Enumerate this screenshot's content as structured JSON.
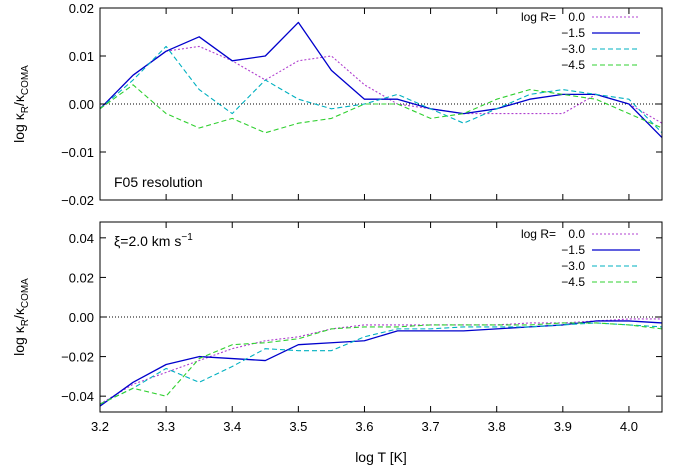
{
  "chart_data": [
    {
      "type": "line",
      "annotation": "F05 resolution",
      "xlabel": "",
      "ylabel_parts": [
        "log κ",
        "R",
        "/κ",
        "COMA"
      ],
      "xlim": [
        3.2,
        4.05
      ],
      "ylim": [
        -0.02,
        0.02
      ],
      "yticks": [
        -0.02,
        -0.01,
        0.0,
        0.01,
        0.02
      ],
      "ytick_labels": [
        "−0.02",
        "−0.01",
        "0.00",
        "0.01",
        "0.02"
      ],
      "zero_line": true,
      "legend_title": "log R=",
      "legend_position": "top-right",
      "x": [
        3.2,
        3.25,
        3.3,
        3.35,
        3.4,
        3.45,
        3.5,
        3.55,
        3.6,
        3.65,
        3.7,
        3.75,
        3.8,
        3.85,
        3.9,
        3.95,
        4.0,
        4.05
      ],
      "series": [
        {
          "name": "0.0",
          "color": "#b040d0",
          "style": "dotted",
          "values": [
            -0.001,
            0.006,
            0.011,
            0.012,
            0.009,
            0.005,
            0.009,
            0.01,
            0.004,
            0.0,
            -0.001,
            -0.002,
            -0.002,
            -0.002,
            -0.002,
            0.002,
            0.0,
            -0.004
          ]
        },
        {
          "name": "−1.5",
          "color": "#0000cc",
          "style": "solid",
          "values": [
            -0.001,
            0.006,
            0.011,
            0.014,
            0.009,
            0.01,
            0.017,
            0.007,
            0.001,
            0.001,
            -0.001,
            -0.002,
            -0.001,
            0.001,
            0.002,
            0.002,
            0.0,
            -0.007
          ]
        },
        {
          "name": "−3.0",
          "color": "#00b0c0",
          "style": "dashed",
          "values": [
            -0.001,
            0.005,
            0.012,
            0.003,
            -0.002,
            0.005,
            0.001,
            -0.001,
            0.0,
            0.002,
            -0.001,
            -0.004,
            -0.001,
            0.002,
            0.003,
            0.002,
            0.001,
            -0.006
          ]
        },
        {
          "name": "−4.5",
          "color": "#30d030",
          "style": "dashed",
          "values": [
            -0.001,
            0.004,
            -0.002,
            -0.005,
            -0.003,
            -0.006,
            -0.004,
            -0.003,
            0.0,
            0.0,
            -0.003,
            -0.002,
            0.001,
            0.003,
            0.002,
            0.001,
            -0.002,
            -0.005
          ]
        }
      ]
    },
    {
      "type": "line",
      "annotation_parts": [
        "ξ=2.0 km s",
        "−1"
      ],
      "xlabel": "log T [K]",
      "ylabel_parts": [
        "log κ",
        "R",
        "/κ",
        "COMA"
      ],
      "xlim": [
        3.2,
        4.05
      ],
      "ylim": [
        -0.048,
        0.048
      ],
      "xticks": [
        3.2,
        3.3,
        3.4,
        3.5,
        3.6,
        3.7,
        3.8,
        3.9,
        4.0
      ],
      "xtick_labels": [
        "3.2",
        "3.3",
        "3.4",
        "3.5",
        "3.6",
        "3.7",
        "3.8",
        "3.9",
        "4.0"
      ],
      "yticks": [
        -0.04,
        -0.02,
        0.0,
        0.02,
        0.04
      ],
      "ytick_labels": [
        "−0.04",
        "−0.02",
        "0.00",
        "0.02",
        "0.04"
      ],
      "zero_line": true,
      "legend_title": "log R=",
      "legend_position": "top-right",
      "x": [
        3.2,
        3.25,
        3.3,
        3.35,
        3.4,
        3.45,
        3.5,
        3.55,
        3.6,
        3.65,
        3.7,
        3.75,
        3.8,
        3.85,
        3.9,
        3.95,
        4.0,
        4.05
      ],
      "series": [
        {
          "name": "0.0",
          "color": "#b040d0",
          "style": "dotted",
          "values": [
            -0.044,
            -0.034,
            -0.028,
            -0.022,
            -0.016,
            -0.012,
            -0.01,
            -0.006,
            -0.004,
            -0.004,
            -0.004,
            -0.004,
            -0.004,
            -0.003,
            -0.003,
            -0.002,
            -0.001,
            -0.001
          ]
        },
        {
          "name": "−1.5",
          "color": "#0000cc",
          "style": "solid",
          "values": [
            -0.045,
            -0.033,
            -0.024,
            -0.02,
            -0.021,
            -0.022,
            -0.014,
            -0.013,
            -0.012,
            -0.007,
            -0.007,
            -0.007,
            -0.006,
            -0.005,
            -0.004,
            -0.002,
            -0.002,
            -0.003
          ]
        },
        {
          "name": "−3.0",
          "color": "#00b0c0",
          "style": "dashed",
          "values": [
            -0.044,
            -0.036,
            -0.026,
            -0.033,
            -0.025,
            -0.016,
            -0.017,
            -0.017,
            -0.01,
            -0.006,
            -0.006,
            -0.005,
            -0.005,
            -0.005,
            -0.004,
            -0.003,
            -0.004,
            -0.005
          ]
        },
        {
          "name": "−4.5",
          "color": "#30d030",
          "style": "dashed",
          "values": [
            -0.044,
            -0.036,
            -0.04,
            -0.021,
            -0.014,
            -0.013,
            -0.011,
            -0.006,
            -0.005,
            -0.005,
            -0.004,
            -0.004,
            -0.004,
            -0.004,
            -0.003,
            -0.003,
            -0.004,
            -0.006
          ]
        }
      ]
    }
  ]
}
